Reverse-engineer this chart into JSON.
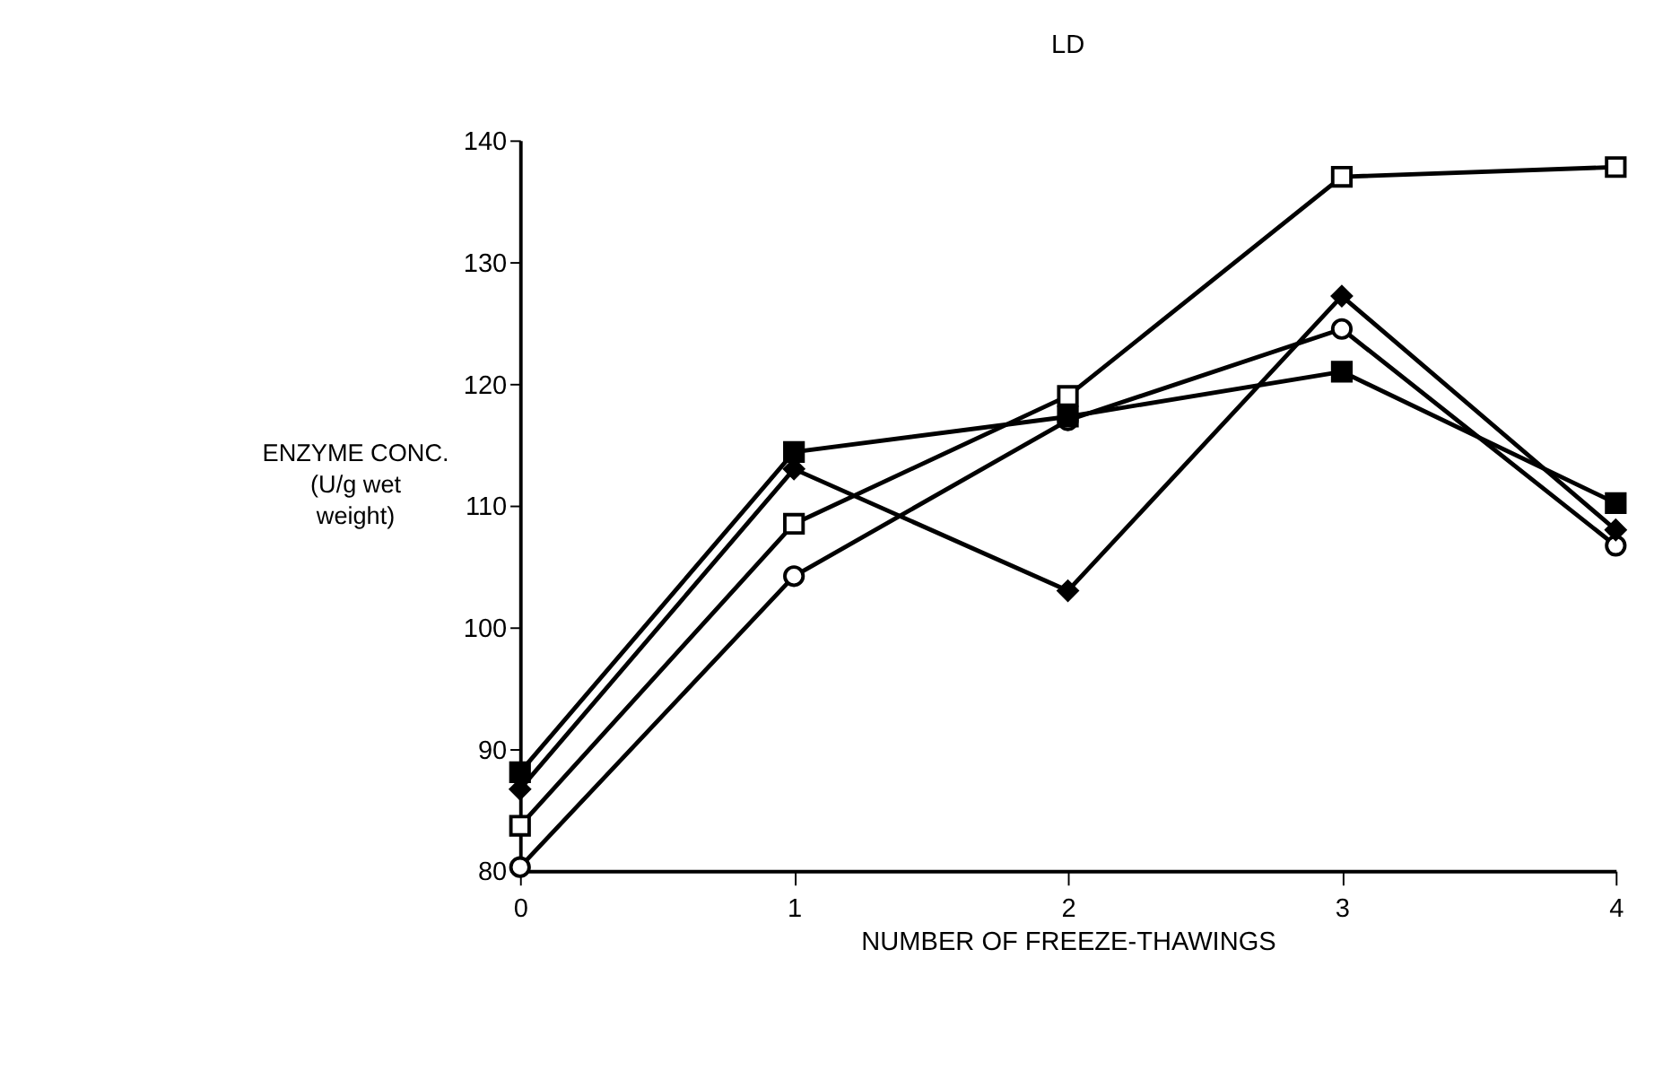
{
  "chart_data": {
    "type": "line",
    "title": "LD",
    "xlabel": "NUMBER OF FREEZE-THAWINGS",
    "ylabel": "ENZYME CONC.\n(U/g  wet\nweight)",
    "x": [
      0,
      1,
      2,
      3,
      4
    ],
    "series": [
      {
        "color": "#000000",
        "marker": "square",
        "values": [
          83.7,
          108.5,
          119,
          137,
          137.8
        ]
      },
      {
        "color": "#000000",
        "marker": "square",
        "values": [
          88.1,
          114.4,
          117.3,
          121,
          110.2
        ]
      },
      {
        "color": "#000000",
        "marker": "diamond",
        "values": [
          86.7,
          113,
          103,
          127.2,
          108
        ]
      },
      {
        "color": "#000000",
        "marker": "circle",
        "values": [
          80.3,
          104.2,
          117,
          124.5,
          106.7
        ]
      }
    ],
    "xlim": [
      0,
      4
    ],
    "xticks": [
      0,
      1,
      2,
      3,
      4
    ],
    "ylim": [
      80,
      140
    ],
    "yticks": [
      80,
      90,
      100,
      110,
      120,
      130,
      140
    ],
    "grid": false,
    "line_style": "solid"
  }
}
